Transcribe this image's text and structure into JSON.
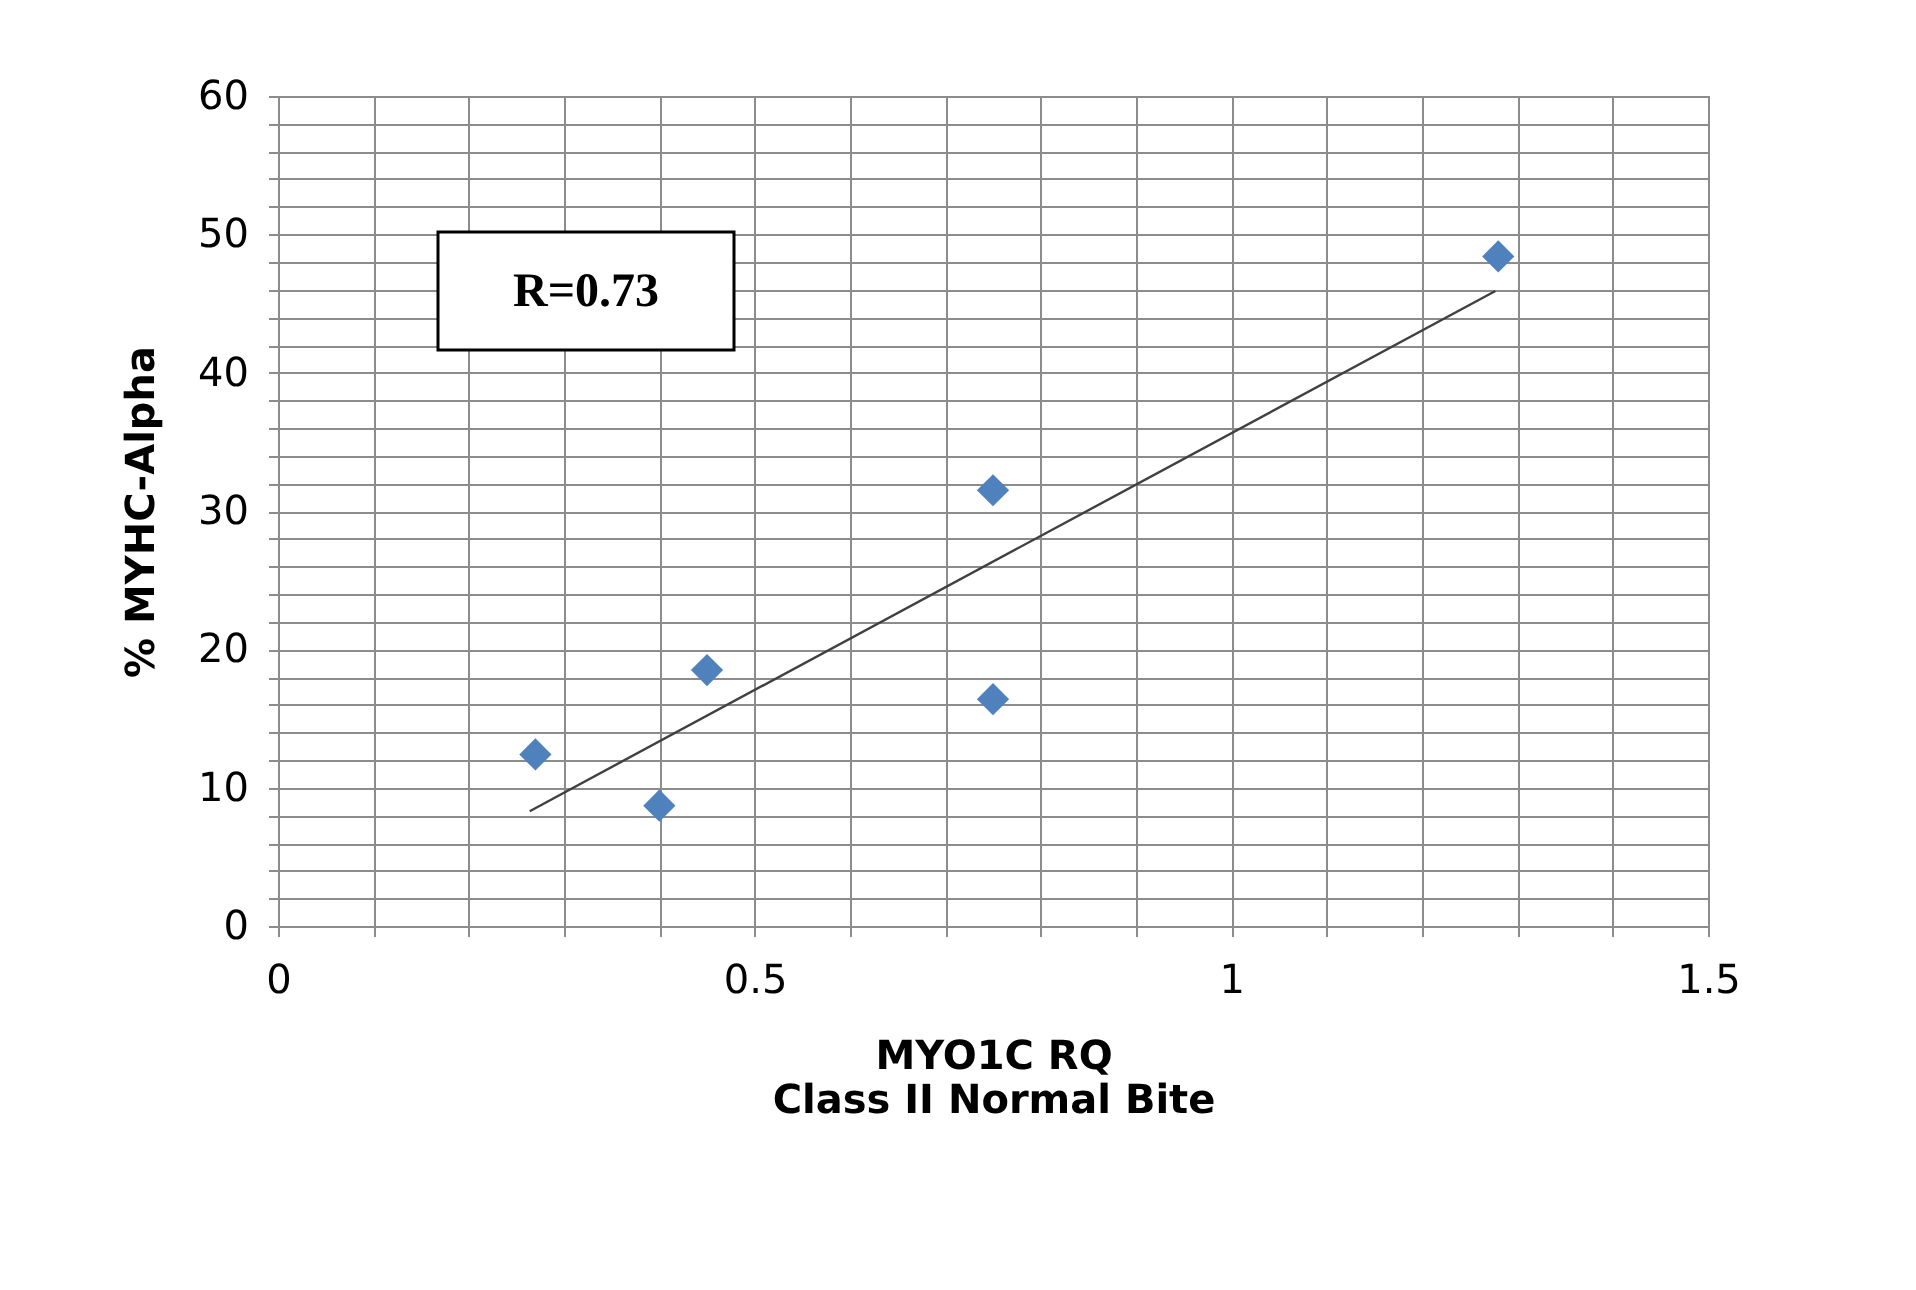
{
  "chart_data": {
    "type": "scatter",
    "xlabel": "MYO1C RQ\nClass II Normal Bite",
    "ylabel": "% MYHC-Alpha",
    "annotations": [
      "R=0.73"
    ],
    "series": [
      {
        "color": "#4f81bd",
        "marker": "diamond",
        "x": [
          0.27,
          0.4,
          0.45,
          0.75,
          0.75,
          1.28
        ],
        "values": [
          12.4,
          8.7,
          18.5,
          31.5,
          16.4,
          48.4
        ]
      },
      {
        "type": "line",
        "color": "#404040",
        "marker": "none",
        "line_style": "solid",
        "x": [
          0.264,
          1.277
        ],
        "values": [
          8.3,
          45.9
        ]
      }
    ],
    "xlim": [
      0,
      1.5
    ],
    "ylim": [
      0,
      60
    ],
    "xticks": [
      0,
      {
        "value": 0.1,
        "label": null
      },
      {
        "value": 0.2,
        "label": null
      },
      {
        "value": 0.3,
        "label": null
      },
      {
        "value": 0.4,
        "label": null
      },
      0.5,
      {
        "value": 0.6,
        "label": null
      },
      {
        "value": 0.7,
        "label": null
      },
      {
        "value": 0.8,
        "label": null
      },
      {
        "value": 0.9,
        "label": null
      },
      1,
      {
        "value": 1.1,
        "label": null
      },
      {
        "value": 1.2,
        "label": null
      },
      {
        "value": 1.3,
        "label": null
      },
      {
        "value": 1.4,
        "label": null
      },
      1.5
    ],
    "yticks": [
      0,
      {
        "value": 2,
        "label": null
      },
      {
        "value": 4,
        "label": null
      },
      {
        "value": 6,
        "label": null
      },
      {
        "value": 8,
        "label": null
      },
      10,
      {
        "value": 12,
        "label": null
      },
      {
        "value": 14,
        "label": null
      },
      {
        "value": 16,
        "label": null
      },
      {
        "value": 18,
        "label": null
      },
      20,
      {
        "value": 22,
        "label": null
      },
      {
        "value": 24,
        "label": null
      },
      {
        "value": 26,
        "label": null
      },
      {
        "value": 28,
        "label": null
      },
      30,
      {
        "value": 32,
        "label": null
      },
      {
        "value": 34,
        "label": null
      },
      {
        "value": 36,
        "label": null
      },
      {
        "value": 38,
        "label": null
      },
      40,
      {
        "value": 42,
        "label": null
      },
      {
        "value": 44,
        "label": null
      },
      {
        "value": 46,
        "label": null
      },
      {
        "value": 48,
        "label": null
      },
      50,
      {
        "value": 52,
        "label": null
      },
      {
        "value": 54,
        "label": null
      },
      {
        "value": 56,
        "label": null
      },
      {
        "value": 58,
        "label": null
      },
      60
    ],
    "grid": true
  }
}
